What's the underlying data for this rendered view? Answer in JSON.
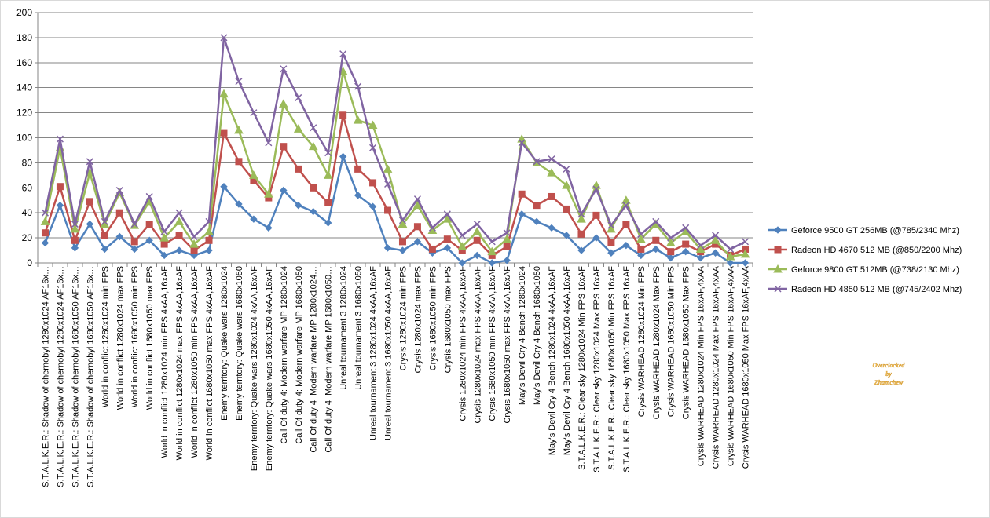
{
  "chart_data": {
    "type": "line",
    "ylim": [
      0,
      200
    ],
    "y_ticks": [
      0,
      20,
      40,
      60,
      80,
      100,
      120,
      140,
      160,
      180,
      200
    ],
    "grid": "horizontal",
    "legend_position": "right",
    "categories": [
      "S.T.A.L.K.E.R.: Shadow of chernobyl 1280x1024 AF16x…",
      "S.T.A.L.K.E.R.: Shadow of chernobyl 1280x1024 AF16x…",
      "S.T.A.L.K.E.R.: Shadow of chernobyl 1680x1050 AF16x…",
      "S.T.A.L.K.E.R.: Shadow of chernobyl 1680x1050 AF16x…",
      "World in conflict 1280x1024 min FPS",
      "World in conflict 1280x1024 max FPS",
      "World in conflict 1680x1050 min FPS",
      "World in conflict 1680x1050 max FPS",
      "World in conflict 1280x1024 min FPS 4xAA,16xAF",
      "World in conflict 1280x1024 max FPS 4xAA,16xAF",
      "World in conflict 1280x1050 min FPS 4xAA,16xAF",
      "World in conflict 1680x1050 max FPS 4xAA,16xAF",
      "Enemy territory: Quake wars 1280x1024",
      "Enemy territory: Quake wars 1680x1050",
      "Enemy territory: Quake wars 1280x1024 4xAA,16xAF",
      "Enemy territory: Quake wars 1680x1050 4xAA,16xAF",
      "Call Of duty 4: Modern warfare MP 1280x1024",
      "Call Of duty 4: Modern warfare MP 1680x1050",
      "Call Of duty 4: Modern warfare MP 1280x1024…",
      "Call Of duty 4: Modern warfare MP 1680x1050…",
      "Unreal tournament 3 1280x1024",
      "Unreal tournament 3 1680x1050",
      "Unreal tournament 3 1280x1024 4xAA,16xAF",
      "Unreal tournament 3 1680x1050 4xAA,16xAF",
      "Crysis 1280x1024 min FPS",
      "Crysis 1280x1024 max FPS",
      "Crysis 1680x1050 min FPS",
      "Crysis 1680x1050 max FPS",
      "Crysis 1280x1024 min FPS 4xAA,16xAF",
      "Crysis 1280x1024 max FPS 4xAA,16xAF",
      "Crysis 1680x1050 min FPS 4xAA,16xAF",
      "Crysis 1680x1050 max FPS 4xAA,16xAF",
      "May's Devil Cry 4 Bench 1280x1024",
      "May's Devil Cry 4 Bench 1680x1050",
      "May's Devil Cry 4 Bench 1280x1024 4xAA,16xAF",
      "May's Devil Cry 4 Bench 1680x1050 4xAA,16xAF",
      "S.T.A.L.K.E.R.: Clear sky 1280x1024 Min FPS 16xAF",
      "S.T.A.L.K.E.R.: Clear sky 1280x1024 Max FPS 16xAF",
      "S.T.A.L.K.E.R.: Clear sky 1680x1050 Min FPS 16xAF",
      "S.T.A.L.K.E.R.: Clear sky 1680x1050 Max FPS 16xAF",
      "Crysis WARHEAD 1280x1024 Min FPS",
      "Crysis WARHEAD 1280x1024 Max FPS",
      "Crysis WARHEAD 1680x1050 Min FPS",
      "Crysis WARHEAD 1680x1050 Max FPS",
      "Crysis WARHEAD 1280x1024 Min FPS 16xAF,4xAA",
      "Crysis WARHEAD 1280x1024 Max FPS 16xAF,4xAA",
      "Crysis WARHEAD 1680x1050 Min FPS 16xAF,4xAA",
      "Crysis WARHEAD 1680x1050 Max FPS 16xAF,4xAA"
    ],
    "series": [
      {
        "name": "Geforce 9500 GT 256MB  (@785/2340 Mhz)",
        "color": "#4f81bd",
        "marker": "diamond",
        "values": [
          16,
          46,
          12,
          31,
          11,
          21,
          11,
          18,
          6,
          10,
          6,
          10,
          61,
          47,
          35,
          28,
          58,
          46,
          41,
          32,
          85,
          54,
          45,
          12,
          10,
          17,
          8,
          12,
          0,
          6,
          0,
          2,
          39,
          33,
          28,
          22,
          10,
          20,
          8,
          14,
          6,
          11,
          4,
          9,
          4,
          8,
          0,
          0
        ]
      },
      {
        "name": "Radeon HD  4670 512 MB  (@850/2200 Mhz)",
        "color": "#c0504d",
        "marker": "square",
        "values": [
          24,
          61,
          18,
          49,
          22,
          40,
          17,
          31,
          15,
          22,
          10,
          18,
          104,
          81,
          66,
          52,
          93,
          75,
          60,
          48,
          118,
          75,
          64,
          42,
          17,
          29,
          11,
          19,
          10,
          18,
          6,
          13,
          55,
          46,
          53,
          43,
          23,
          38,
          16,
          31,
          11,
          18,
          9,
          15,
          9,
          15,
          6,
          11
        ]
      },
      {
        "name": "Geforce 9800 GT 512MB  (@738/2130 Mhz)",
        "color": "#9bbb59",
        "marker": "triangle",
        "values": [
          33,
          92,
          27,
          72,
          31,
          56,
          30,
          49,
          20,
          33,
          15,
          25,
          135,
          106,
          70,
          55,
          127,
          107,
          93,
          70,
          153,
          114,
          110,
          75,
          31,
          46,
          26,
          35,
          13,
          25,
          9,
          19,
          99,
          80,
          72,
          62,
          35,
          62,
          27,
          50,
          19,
          31,
          16,
          25,
          11,
          18,
          5,
          7
        ]
      },
      {
        "name": "Radeon HD 4850 512 MB  (@745/2402 Mhz)",
        "color": "#8064a2",
        "marker": "x",
        "values": [
          40,
          99,
          31,
          81,
          33,
          58,
          31,
          53,
          25,
          40,
          21,
          33,
          180,
          145,
          120,
          96,
          155,
          132,
          108,
          88,
          167,
          141,
          92,
          63,
          34,
          51,
          28,
          39,
          22,
          31,
          17,
          24,
          96,
          81,
          83,
          75,
          39,
          59,
          30,
          46,
          23,
          33,
          20,
          28,
          14,
          22,
          11,
          17
        ]
      }
    ]
  },
  "watermark": {
    "line1": "Overclocked",
    "line2": "by",
    "line3": "Zhamchew"
  }
}
